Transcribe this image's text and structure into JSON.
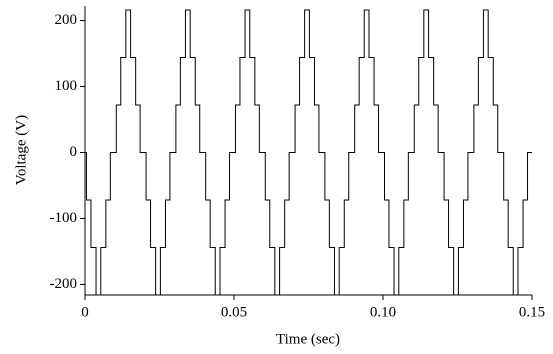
{
  "chart_data": {
    "type": "line",
    "xlabel": "Time (sec)",
    "ylabel": "Voltage (V)",
    "color": "#000000",
    "xlim": [
      0,
      0.15
    ],
    "xticks": [
      0,
      0.05,
      {
        "value": 0.1,
        "label": "0.10"
      },
      0.15
    ],
    "ylim": [
      -216,
      222
    ],
    "yticks": [
      200,
      100,
      0,
      -100,
      -200
    ],
    "grid": false,
    "x": [
      0,
      0.0005,
      0.0005,
      0.002,
      0.002,
      0.0037,
      0.0037,
      0.0053,
      0.0053,
      0.007,
      0.007,
      0.0085,
      0.0085,
      0.0105,
      0.0105,
      0.012,
      0.012,
      0.0137,
      0.0137,
      0.0153,
      0.0153,
      0.017,
      0.017,
      0.0185,
      0.0185,
      0.0205,
      0.0205,
      0.022,
      0.022,
      0.0237,
      0.0237,
      0.0253,
      0.0253,
      0.027,
      0.027,
      0.0285,
      0.0285,
      0.0305,
      0.0305,
      0.032,
      0.032,
      0.0337,
      0.0337,
      0.0353,
      0.0353,
      0.037,
      0.037,
      0.0385,
      0.0385,
      0.0405,
      0.0405,
      0.042,
      0.042,
      0.0437,
      0.0437,
      0.0453,
      0.0453,
      0.047,
      0.047,
      0.0485,
      0.0485,
      0.0505,
      0.0505,
      0.052,
      0.052,
      0.0537,
      0.0537,
      0.0553,
      0.0553,
      0.057,
      0.057,
      0.0585,
      0.0585,
      0.0605,
      0.0605,
      0.062,
      0.062,
      0.0637,
      0.0637,
      0.0653,
      0.0653,
      0.067,
      0.067,
      0.0685,
      0.0685,
      0.0705,
      0.0705,
      0.072,
      0.072,
      0.0737,
      0.0737,
      0.0753,
      0.0753,
      0.077,
      0.077,
      0.0785,
      0.0785,
      0.0805,
      0.0805,
      0.082,
      0.082,
      0.0837,
      0.0837,
      0.0853,
      0.0853,
      0.087,
      0.087,
      0.0885,
      0.0885,
      0.0905,
      0.0905,
      0.092,
      0.092,
      0.0937,
      0.0937,
      0.0953,
      0.0953,
      0.097,
      0.097,
      0.0985,
      0.0985,
      0.1005,
      0.1005,
      0.102,
      0.102,
      0.1037,
      0.1037,
      0.1053,
      0.1053,
      0.107,
      0.107,
      0.1085,
      0.1085,
      0.1105,
      0.1105,
      0.112,
      0.112,
      0.1137,
      0.1137,
      0.1153,
      0.1153,
      0.117,
      0.117,
      0.1185,
      0.1185,
      0.1205,
      0.1205,
      0.122,
      0.122,
      0.1237,
      0.1237,
      0.1253,
      0.1253,
      0.127,
      0.127,
      0.1285,
      0.1285,
      0.1305,
      0.1305,
      0.132,
      0.132,
      0.1337,
      0.1337,
      0.1353,
      0.1353,
      0.137,
      0.137,
      0.1385,
      0.1385,
      0.1405,
      0.1405,
      0.142,
      0.142,
      0.1437,
      0.1437,
      0.1453,
      0.1453,
      0.147,
      0.147,
      0.1485,
      0.1485,
      0.15
    ],
    "values": [
      0,
      0,
      -72,
      -72,
      -144,
      -144,
      -216,
      -216,
      -144,
      -144,
      -72,
      -72,
      0,
      0,
      72,
      72,
      144,
      144,
      216,
      216,
      144,
      144,
      72,
      72,
      0,
      0,
      -72,
      -72,
      -144,
      -144,
      -216,
      -216,
      -144,
      -144,
      -72,
      -72,
      0,
      0,
      72,
      72,
      144,
      144,
      216,
      216,
      144,
      144,
      72,
      72,
      0,
      0,
      -72,
      -72,
      -144,
      -144,
      -216,
      -216,
      -144,
      -144,
      -72,
      -72,
      0,
      0,
      72,
      72,
      144,
      144,
      216,
      216,
      144,
      144,
      72,
      72,
      0,
      0,
      -72,
      -72,
      -144,
      -144,
      -216,
      -216,
      -144,
      -144,
      -72,
      -72,
      0,
      0,
      72,
      72,
      144,
      144,
      216,
      216,
      144,
      144,
      72,
      72,
      0,
      0,
      -72,
      -72,
      -144,
      -144,
      -216,
      -216,
      -144,
      -144,
      -72,
      -72,
      0,
      0,
      72,
      72,
      144,
      144,
      216,
      216,
      144,
      144,
      72,
      72,
      0,
      0,
      -72,
      -72,
      -144,
      -144,
      -216,
      -216,
      -144,
      -144,
      -72,
      -72,
      0,
      0,
      72,
      72,
      144,
      144,
      216,
      216,
      144,
      144,
      72,
      72,
      0,
      0,
      -72,
      -72,
      -144,
      -144,
      -216,
      -216,
      -144,
      -144,
      -72,
      -72,
      0,
      0,
      72,
      72,
      144,
      144,
      216,
      216,
      144,
      144,
      72,
      72,
      0,
      0,
      -72,
      -72,
      -144,
      -144,
      -216,
      -216,
      -144,
      -144,
      -72,
      -72,
      0,
      0
    ]
  }
}
